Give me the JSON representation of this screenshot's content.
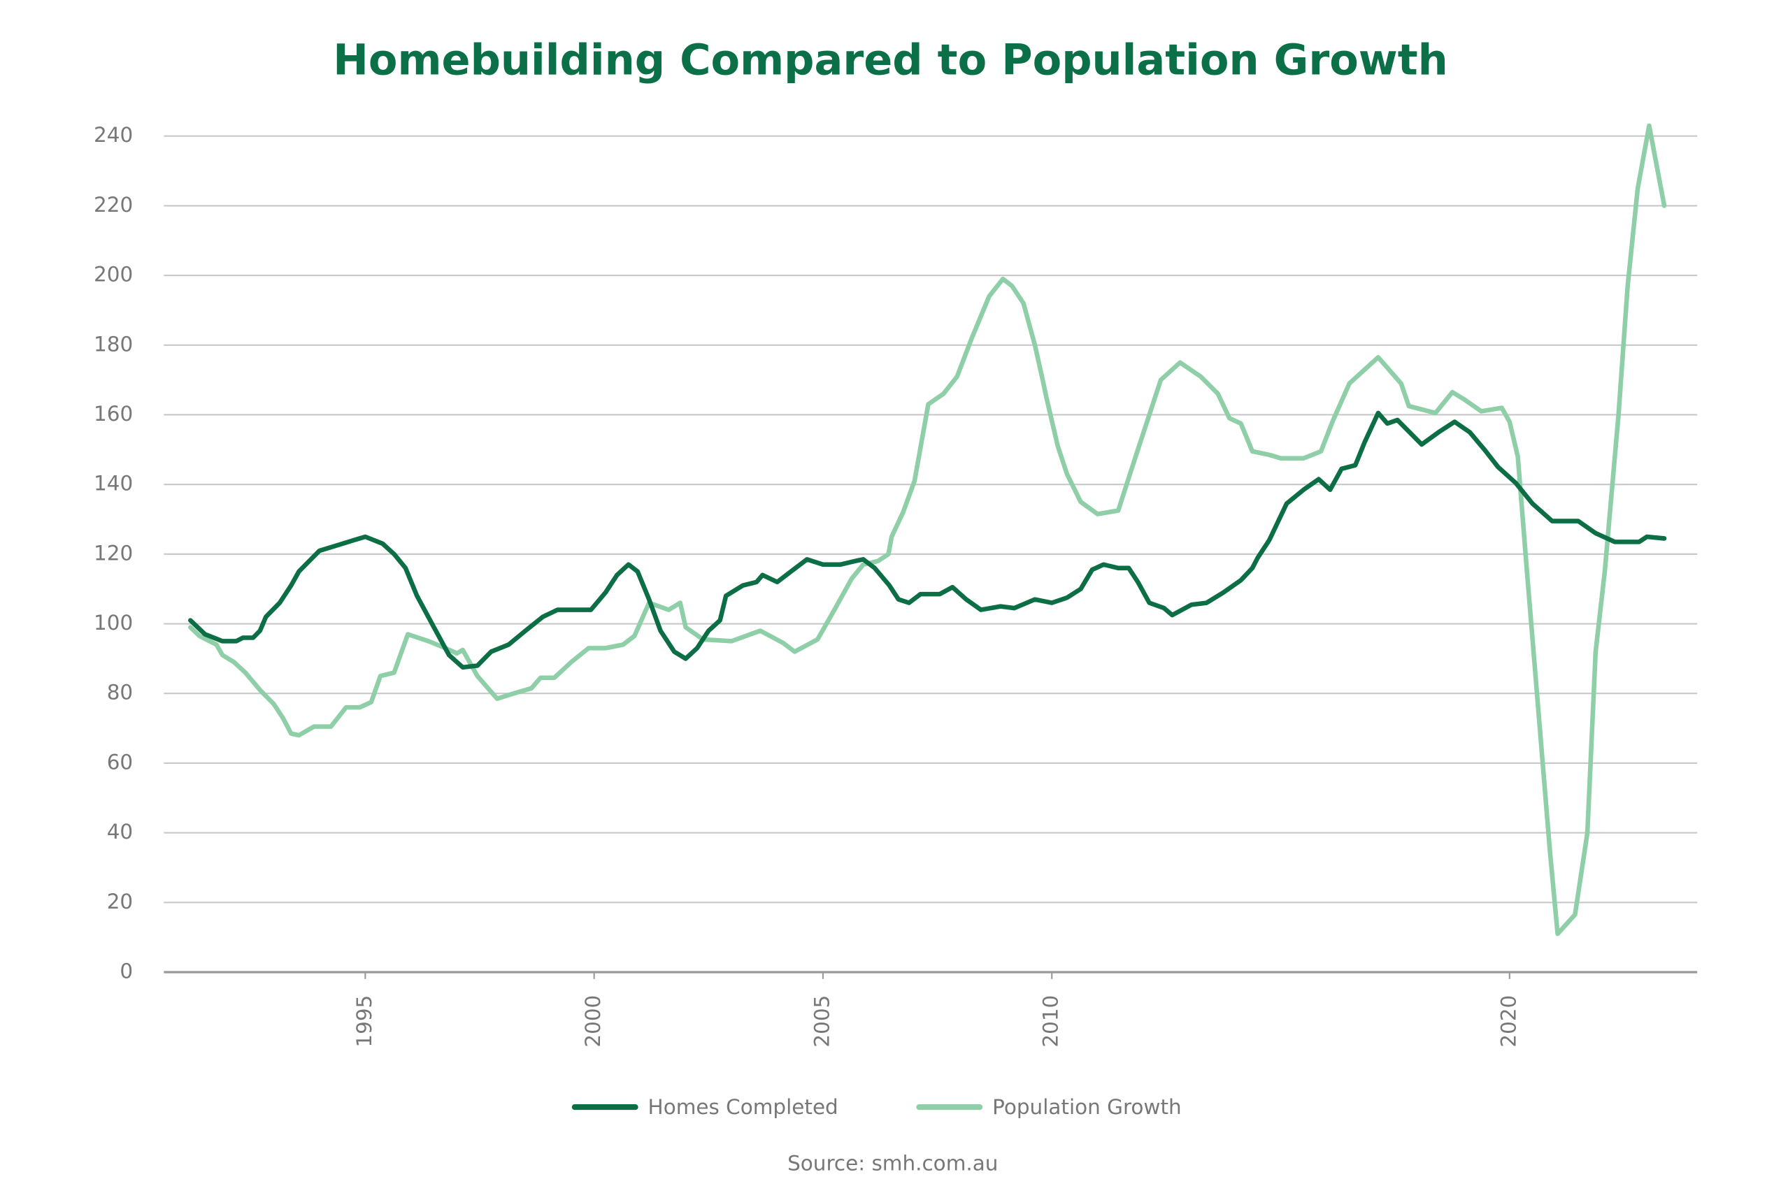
{
  "chart_data": {
    "type": "line",
    "title": "Homebuilding Compared to Population Growth",
    "source": "Source: smh.com.au",
    "xlim": [
      1990.6,
      2024.1
    ],
    "xticks": [
      1995,
      2000,
      2005,
      2010,
      2020
    ],
    "ylim": [
      0,
      240
    ],
    "yticks": [
      0,
      20,
      40,
      60,
      80,
      100,
      120,
      140,
      160,
      180,
      200,
      220,
      240
    ],
    "grid": true,
    "legend": "bottom",
    "series": [
      {
        "name": "Homes Completed",
        "color": "#0b6e45",
        "x": [
          1991.18,
          1991.5,
          1991.88,
          1992.18,
          1992.33,
          1992.55,
          1992.7,
          1992.83,
          1993.13,
          1993.38,
          1993.55,
          1994.0,
          1994.5,
          1994.75,
          1995.0,
          1995.38,
          1995.63,
          1995.88,
          1996.13,
          1996.5,
          1996.83,
          1997.13,
          1997.45,
          1997.75,
          1998.13,
          1998.5,
          1998.88,
          1999.2,
          1999.63,
          1999.93,
          2000.25,
          2000.5,
          2000.75,
          2000.95,
          2001.2,
          2001.45,
          2001.75,
          2002.0,
          2002.25,
          2002.5,
          2002.75,
          2002.88,
          2003.25,
          2003.55,
          2003.68,
          2004.0,
          2004.3,
          2004.65,
          2005.0,
          2005.38,
          2005.7,
          2005.88,
          2006.13,
          2006.45,
          2006.65,
          2006.88,
          2007.13,
          2007.55,
          2007.83,
          2008.13,
          2008.45,
          2008.88,
          2009.18,
          2009.63,
          2010.0,
          2010.33,
          2010.63,
          2010.88,
          2011.13,
          2011.45,
          2011.68,
          2011.88,
          2012.13,
          2012.45,
          2012.63,
          2013.05,
          2013.38,
          2013.75,
          2014.13,
          2014.38,
          2014.5,
          2014.75,
          2015.13,
          2015.5,
          2015.83,
          2016.08,
          2016.33,
          2016.63,
          2016.83,
          2017.13,
          2017.33,
          2017.55,
          2018.08,
          2018.45,
          2018.8,
          2019.13,
          2019.45,
          2019.75,
          2020.13,
          2020.5,
          2020.93,
          2021.5,
          2021.88,
          2022.3,
          2022.83,
          2023.0,
          2023.38
        ],
        "values": [
          101,
          97,
          95,
          95,
          96,
          96,
          98,
          102,
          106,
          111,
          115,
          121,
          123,
          124,
          125,
          123,
          120,
          116,
          108,
          99,
          91,
          87.5,
          88,
          92,
          94,
          98,
          102,
          104,
          104,
          104,
          109,
          114,
          117,
          115,
          107,
          98,
          92,
          90,
          93,
          98,
          101,
          108,
          111,
          112,
          114,
          112,
          115,
          118.5,
          117,
          117,
          118,
          118.5,
          116,
          111,
          107,
          106,
          108.5,
          108.5,
          110.5,
          107,
          104,
          105,
          104.5,
          107,
          106,
          107.5,
          110,
          115.5,
          117,
          116,
          116,
          112,
          106,
          104.5,
          102.5,
          105.5,
          106,
          109,
          112.5,
          116,
          119,
          124,
          134.5,
          138.5,
          141.5,
          138.5,
          144.5,
          145.5,
          152,
          160.5,
          157.5,
          158.5,
          151.5,
          155,
          158,
          155,
          150,
          145,
          140.5,
          134.5,
          129.5,
          129.5,
          126,
          123.5,
          123.5,
          125,
          124.5
        ]
      },
      {
        "name": "Population Growth",
        "color": "#8ecfa8",
        "x": [
          1991.18,
          1991.38,
          1991.75,
          1991.88,
          1992.13,
          1992.38,
          1992.7,
          1993.0,
          1993.2,
          1993.38,
          1993.55,
          1993.88,
          1994.25,
          1994.58,
          1994.88,
          1995.13,
          1995.33,
          1995.63,
          1995.93,
          1996.38,
          1996.75,
          1997.0,
          1997.13,
          1997.45,
          1997.88,
          1998.25,
          1998.63,
          1998.83,
          1999.13,
          1999.5,
          1999.88,
          2000.25,
          2000.63,
          2000.88,
          2001.2,
          2001.63,
          2001.88,
          2002.0,
          2002.38,
          2003.0,
          2003.63,
          2004.13,
          2004.38,
          2004.88,
          2005.25,
          2005.63,
          2005.88,
          2006.2,
          2006.43,
          2006.5,
          2006.75,
          2007.0,
          2007.3,
          2007.63,
          2007.93,
          2008.25,
          2008.63,
          2008.93,
          2009.13,
          2009.38,
          2009.63,
          2009.8,
          2009.88,
          2010.13,
          2010.33,
          2010.63,
          2011.0,
          2011.45,
          2011.88,
          2012.38,
          2012.8,
          2013.25,
          2013.63,
          2013.88,
          2014.13,
          2014.38,
          2014.75,
          2015.0,
          2015.5,
          2015.88,
          2016.13,
          2016.5,
          2017.13,
          2017.63,
          2017.8,
          2018.38,
          2018.75,
          2019.0,
          2019.38,
          2019.83,
          2020.0,
          2020.18,
          2020.38,
          2020.63,
          2020.88,
          2021.05,
          2021.43,
          2021.7,
          2021.88,
          2022.08,
          2022.38,
          2022.58,
          2022.8,
          2023.05,
          2023.38
        ],
        "values": [
          99,
          96.5,
          94,
          91,
          89,
          86,
          81,
          77,
          73,
          68.5,
          68,
          70.5,
          70.5,
          76,
          76,
          77.5,
          85,
          86,
          97,
          95,
          93,
          91.5,
          92.5,
          85,
          78.5,
          80,
          81.5,
          84.5,
          84.5,
          89,
          93,
          93,
          94,
          96.5,
          106,
          104,
          106,
          99,
          95.5,
          95,
          98,
          94.5,
          92,
          95.5,
          104,
          113,
          117,
          118,
          120,
          125,
          132,
          141,
          163,
          166,
          171,
          182,
          194,
          199,
          197,
          192,
          180,
          170,
          165,
          151,
          143,
          135,
          131.5,
          132.5,
          150,
          170,
          175,
          171,
          166,
          159,
          157.5,
          149.5,
          148.5,
          147.5,
          147.5,
          149.5,
          158,
          169,
          176.5,
          169,
          162.5,
          160.5,
          166.5,
          164.5,
          161,
          162,
          158,
          148,
          115,
          75,
          35,
          11,
          16.5,
          40,
          92,
          115,
          160,
          197,
          225,
          243,
          220
        ]
      }
    ]
  }
}
